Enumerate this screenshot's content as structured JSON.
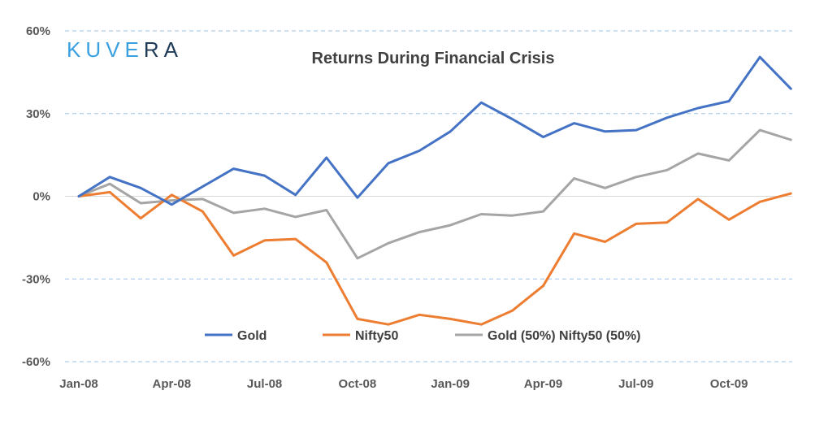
{
  "logo": {
    "text": "KUVERA",
    "color": "#3aa0e0",
    "accent_color": "#1f3b57"
  },
  "chart_data": {
    "type": "line",
    "title": "Returns During Financial Crisis",
    "xlabel": "",
    "ylabel": "",
    "ylim": [
      -60,
      60
    ],
    "y_ticks": [
      60,
      30,
      0,
      -30,
      -60
    ],
    "y_tick_labels": [
      "60%",
      "30%",
      "0%",
      "-30%",
      "-60%"
    ],
    "x_tick_labels": [
      "Jan-08",
      "Apr-08",
      "Jul-08",
      "Oct-08",
      "Jan-09",
      "Apr-09",
      "Jul-09",
      "Oct-09"
    ],
    "x_tick_indices": [
      0,
      3,
      6,
      9,
      12,
      15,
      18,
      21
    ],
    "grid": true,
    "legend_position": "bottom",
    "x": [
      "Jan-08",
      "Feb-08",
      "Mar-08",
      "Apr-08",
      "May-08",
      "Jun-08",
      "Jul-08",
      "Aug-08",
      "Sep-08",
      "Oct-08",
      "Nov-08",
      "Dec-08",
      "Jan-09",
      "Feb-09",
      "Mar-09",
      "Apr-09",
      "May-09",
      "Jun-09",
      "Jul-09",
      "Aug-09",
      "Sep-09",
      "Oct-09",
      "Nov-09",
      "Dec-09"
    ],
    "series": [
      {
        "name": "Gold",
        "color": "#4472c4",
        "values": [
          0,
          7,
          3,
          -3,
          3.5,
          10,
          7.5,
          0.5,
          14,
          -0.5,
          12,
          16.5,
          23.5,
          34,
          28,
          21.5,
          26.5,
          23.5,
          24,
          28.5,
          32,
          34.5,
          50.5,
          39
        ]
      },
      {
        "name": "Nifty50",
        "color": "#ed7d31",
        "values": [
          0,
          1.5,
          -8,
          0.5,
          -5.5,
          -21.5,
          -16,
          -15.5,
          -24,
          -44.5,
          -46.5,
          -43,
          -44.5,
          -46.5,
          -41.5,
          -32.5,
          -13.5,
          -16.5,
          -10,
          -9.5,
          -1,
          -8.5,
          -2,
          1
        ]
      },
      {
        "name": "Gold (50%) Nifty50 (50%)",
        "color": "#a5a5a5",
        "values": [
          0,
          4.5,
          -2.5,
          -1.5,
          -1,
          -6,
          -4.5,
          -7.5,
          -5,
          -22.5,
          -17,
          -13,
          -10.5,
          -6.5,
          -7,
          -5.5,
          6.5,
          3,
          7,
          9.5,
          15.5,
          13,
          24,
          20.5
        ]
      }
    ]
  }
}
